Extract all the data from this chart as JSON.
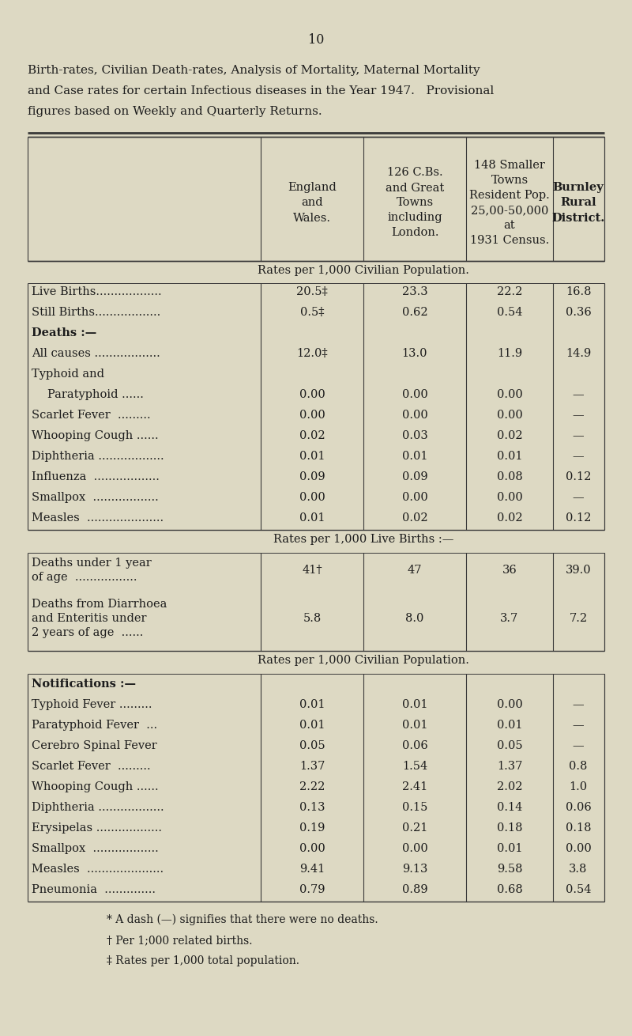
{
  "page_number": "10",
  "title_lines": [
    "Birth-rates, Civilian Death-rates, Analysis of Mortality, Maternal Mortality",
    "and Case rates for certain Infectious diseases in the Year 1947.   Provisional",
    "figures based on Weekly and Quarterly Returns."
  ],
  "col_headers": [
    [
      "England",
      "and",
      "Wales."
    ],
    [
      "126 C.Bs.",
      "and Great",
      "Towns",
      "including",
      "London."
    ],
    [
      "148 Smaller",
      "Towns",
      "Resident Pop.",
      "25,00-50,000",
      "at",
      "1931 Census."
    ],
    [
      "Burnley",
      "Rural",
      "District."
    ]
  ],
  "col_header_bold": [
    false,
    false,
    false,
    true
  ],
  "section1_header": "Rates per 1,000 Civilian Population.",
  "rows_section1": [
    {
      "label": "Live Births..................",
      "bold": false,
      "indent": false,
      "values": [
        "20.5‡",
        "23.3",
        "22.2",
        "16.8"
      ]
    },
    {
      "label": "Still Births..................",
      "bold": false,
      "indent": false,
      "values": [
        "0.5‡",
        "0.62",
        "0.54",
        "0.36"
      ]
    },
    {
      "label": "Deaths :—",
      "bold": true,
      "indent": false,
      "values": [
        "",
        "",
        "",
        ""
      ],
      "label_only": true
    },
    {
      "label": "All causes ..................",
      "bold": false,
      "indent": false,
      "values": [
        "12.0‡",
        "13.0",
        "11.9",
        "14.9"
      ]
    },
    {
      "label": "Typhoid and",
      "bold": false,
      "indent": false,
      "values": [
        "",
        "",
        "",
        ""
      ],
      "label_only": true
    },
    {
      "label": "Paratyphoid ......",
      "bold": false,
      "indent": true,
      "values": [
        "0.00",
        "0.00",
        "0.00",
        "—"
      ]
    },
    {
      "label": "Scarlet Fever  .........",
      "bold": false,
      "indent": false,
      "values": [
        "0.00",
        "0.00",
        "0.00",
        "—"
      ]
    },
    {
      "label": "Whooping Cough ......",
      "bold": false,
      "indent": false,
      "values": [
        "0.02",
        "0.03",
        "0.02",
        "—"
      ]
    },
    {
      "label": "Diphtheria ..................",
      "bold": false,
      "indent": false,
      "values": [
        "0.01",
        "0.01",
        "0.01",
        "—"
      ]
    },
    {
      "label": "Influenza  ..................",
      "bold": false,
      "indent": false,
      "values": [
        "0.09",
        "0.09",
        "0.08",
        "0.12"
      ]
    },
    {
      "label": "Smallpox  ..................",
      "bold": false,
      "indent": false,
      "values": [
        "0.00",
        "0.00",
        "0.00",
        "—"
      ]
    },
    {
      "label": "Measles  .....................",
      "bold": false,
      "indent": false,
      "values": [
        "0.01",
        "0.02",
        "0.02",
        "0.12"
      ]
    }
  ],
  "section2_header": "Rates per 1,000 Live Births :—",
  "rows_section2": [
    {
      "label_lines": [
        "Deaths under 1 year",
        "of age  ................."
      ],
      "values": [
        "41†",
        "47",
        "36",
        "39.0"
      ]
    },
    {
      "label_lines": [
        "Deaths from Diarrhoea",
        "and Enteritis under",
        "2 years of age  ......"
      ],
      "values": [
        "5.8",
        "8.0",
        "3.7",
        "7.2"
      ]
    }
  ],
  "section3_header": "Rates per 1,000 Civilian Population.",
  "rows_section3": [
    {
      "label": "Notifications :—",
      "bold": true,
      "values": [
        "",
        "",
        "",
        ""
      ],
      "label_only": true
    },
    {
      "label": "Typhoid Fever .........",
      "bold": false,
      "values": [
        "0.01",
        "0.01",
        "0.00",
        "—"
      ]
    },
    {
      "label": "Paratyphoid Fever  ...",
      "bold": false,
      "values": [
        "0.01",
        "0.01",
        "0.01",
        "—"
      ]
    },
    {
      "label": "Cerebro Spinal Fever",
      "bold": false,
      "values": [
        "0.05",
        "0.06",
        "0.05",
        "—"
      ]
    },
    {
      "label": "Scarlet Fever  .........",
      "bold": false,
      "values": [
        "1.37",
        "1.54",
        "1.37",
        "0.8"
      ]
    },
    {
      "label": "Whooping Cough ......",
      "bold": false,
      "values": [
        "2.22",
        "2.41",
        "2.02",
        "1.0"
      ]
    },
    {
      "label": "Diphtheria ..................",
      "bold": false,
      "values": [
        "0.13",
        "0.15",
        "0.14",
        "0.06"
      ]
    },
    {
      "label": "Erysipelas ..................",
      "bold": false,
      "values": [
        "0.19",
        "0.21",
        "0.18",
        "0.18"
      ]
    },
    {
      "label": "Smallpox  ..................",
      "bold": false,
      "values": [
        "0.00",
        "0.00",
        "0.01",
        "0.00"
      ]
    },
    {
      "label": "Measles  .....................",
      "bold": false,
      "values": [
        "9.41",
        "9.13",
        "9.58",
        "3.8"
      ]
    },
    {
      "label": "Pneumonia  ..............",
      "bold": false,
      "values": [
        "0.79",
        "0.89",
        "0.68",
        "0.54"
      ]
    }
  ],
  "footnotes": [
    "* A dash (—) signifies that there were no deaths.",
    "† Per 1;000 related births.",
    "‡ Rates per 1,000 total population."
  ],
  "bg_color": "#ddd9c3",
  "text_color": "#1c1c1c",
  "line_color": "#3a3a3a"
}
